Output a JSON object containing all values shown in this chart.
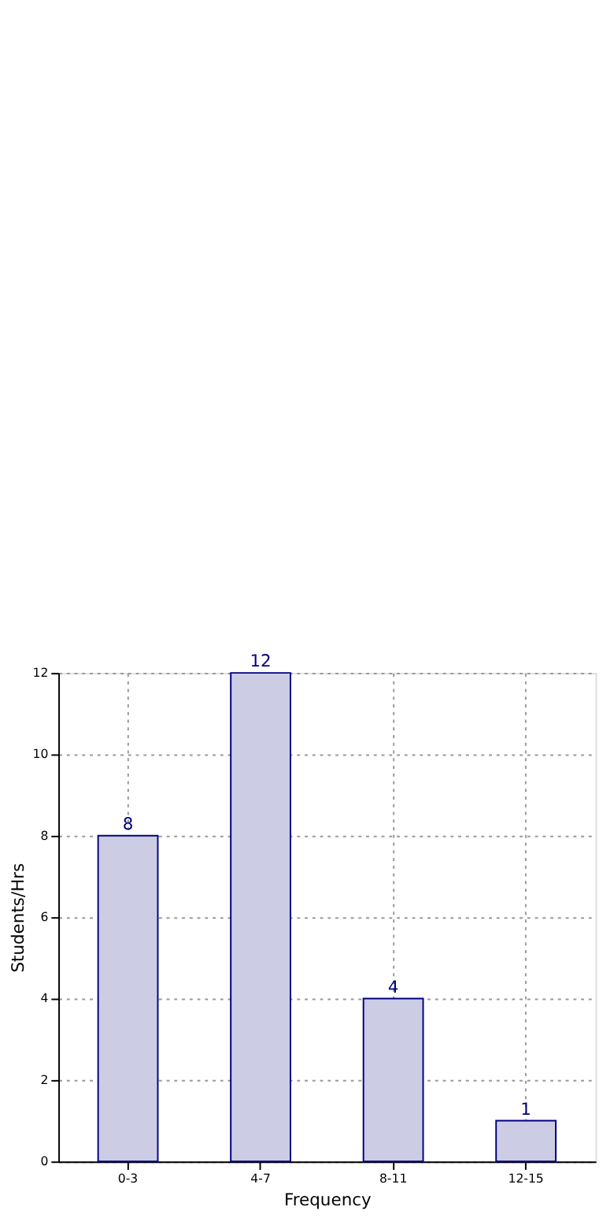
{
  "chart_data": {
    "type": "bar",
    "xlabel": "Frequency",
    "ylabel": "Students/Hrs",
    "categories": [
      "0-3",
      "4-7",
      "8-11",
      "12-15"
    ],
    "values": [
      8,
      12,
      4,
      1
    ],
    "color": "#cccce5",
    "ylim": [
      0,
      12
    ],
    "yticks": [
      0,
      2,
      4,
      6,
      8,
      10,
      12
    ],
    "grid": true,
    "data_labels": true
  }
}
